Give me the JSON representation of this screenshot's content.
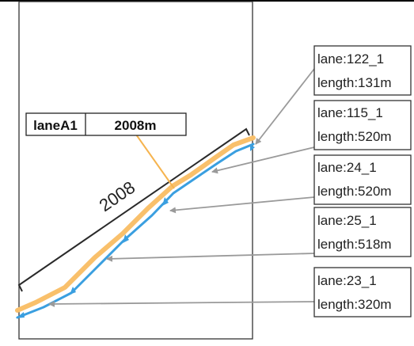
{
  "lane_label": {
    "name": "laneA1",
    "length": "2008m"
  },
  "dimension": {
    "value": "2008"
  },
  "callouts": [
    {
      "lane": "lane:122_1",
      "length": "length:131m"
    },
    {
      "lane": "lane:115_1",
      "length": "length:520m"
    },
    {
      "lane": "lane:24_1",
      "length": "length:520m"
    },
    {
      "lane": "lane:25_1",
      "length": "length:518m"
    },
    {
      "lane": "lane:23_1",
      "length": "length:320m"
    }
  ],
  "colors": {
    "lane_orange": "#f9c06b",
    "lane_blue": "#3a9fe0",
    "leader_gray": "#9a9a9a",
    "label_leader_orange": "#f6b44f",
    "frame": "#333333"
  }
}
